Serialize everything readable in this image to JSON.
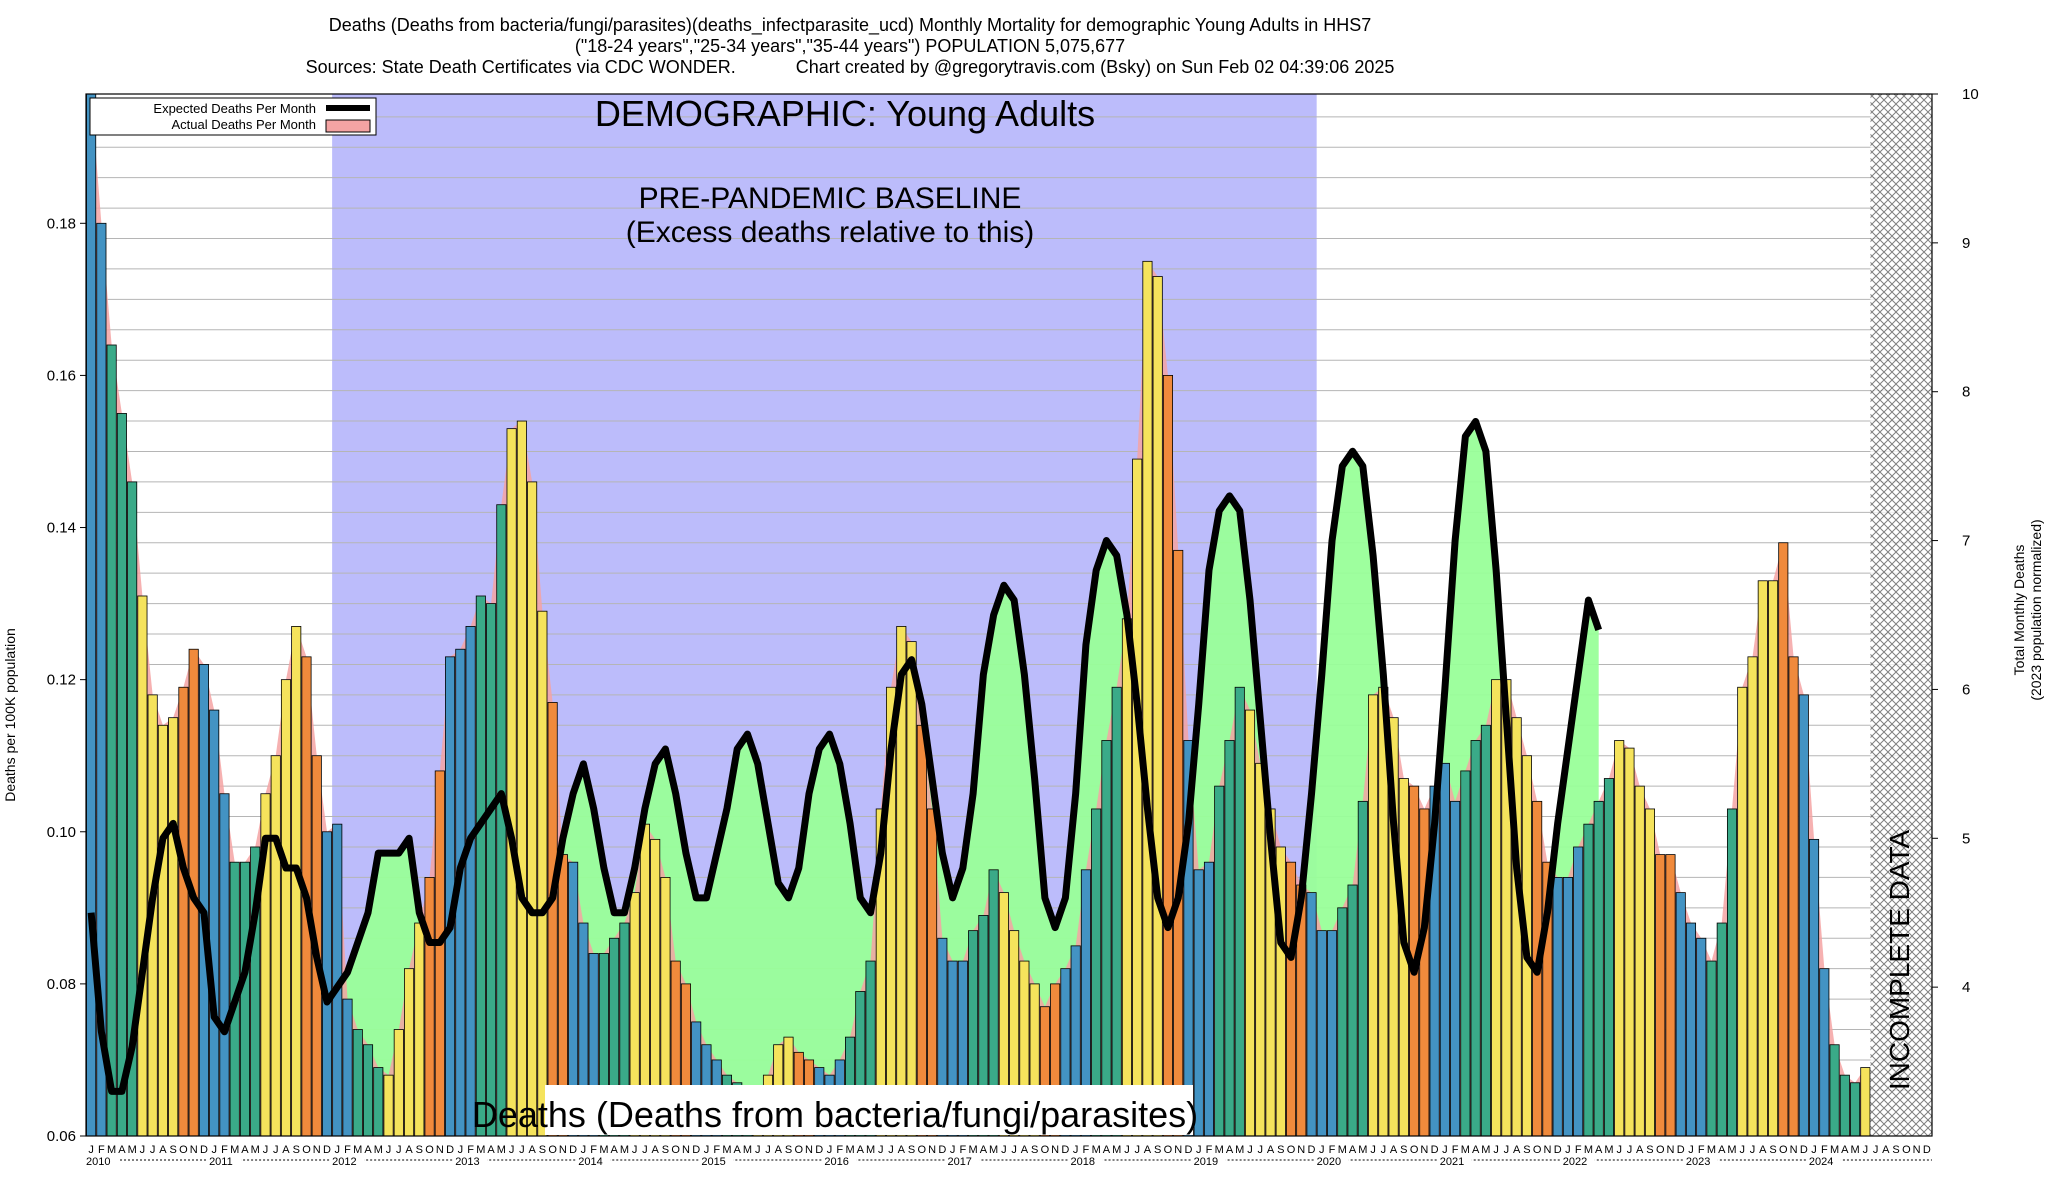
{
  "title": {
    "line1": "Deaths (Deaths from bacteria/fungi/parasites)(deaths_infectparasite_ucd) Monthly Mortality for demographic Young Adults in HHS7",
    "line2": "(\"18-24 years\",\"25-34 years\",\"35-44 years\") POPULATION 5,075,677",
    "line3": "Sources: State Death Certificates via CDC WONDER.            Chart created by @gregorytravis.com (Bsky) on Sun Feb 02 04:39:06 2025"
  },
  "labels": {
    "y_left": "Deaths per 100K population",
    "y_right_1": "Total Monthly Deaths",
    "y_right_2": "(2023 population normalized)",
    "demographic": "DEMOGRAPHIC: Young Adults",
    "baseline_1": "PRE-PANDEMIC BASELINE",
    "baseline_2": "(Excess deaths relative to this)",
    "cause_banner": "Deaths (Deaths from bacteria/fungi/parasites)",
    "incomplete": "INCOMPLETE DATA"
  },
  "legend": [
    {
      "label": "Expected Deaths Per Month",
      "color": "#000000"
    },
    {
      "label": "Actual Deaths Per Month",
      "color": "#f4a3a3"
    }
  ],
  "colors": {
    "baseline_band": "#bcbcfb",
    "excess_fill": "#99ff99",
    "baseline_green": "#77dd99",
    "winter": "#4393c3",
    "spring": "#3aaa88",
    "summer": "#f5e35c",
    "fall": "#f08a3c",
    "actual_area": "#f4a3a3"
  },
  "chart_data": {
    "type": "bar",
    "start": "2010-01",
    "month_letters": [
      "J",
      "F",
      "M",
      "A",
      "M",
      "J",
      "J",
      "A",
      "S",
      "O",
      "N",
      "D"
    ],
    "years": [
      "2010",
      "2011",
      "2012",
      "2013",
      "2014",
      "2015",
      "2016",
      "2017",
      "2018",
      "2019",
      "2020",
      "2021",
      "2022",
      "2023",
      "2024"
    ],
    "ylim": [
      0.06,
      0.197
    ],
    "yticks": [
      0.06,
      0.08,
      0.1,
      0.12,
      0.14,
      0.16,
      0.18
    ],
    "y2lim": [
      3,
      10
    ],
    "y2ticks": [
      4,
      5,
      6,
      7,
      8,
      9,
      10
    ],
    "baseline_period": [
      "2012-01",
      "2019-12"
    ],
    "incomplete_from": "2024-07",
    "series": [
      {
        "name": "Actual Deaths Per Month",
        "values": [
          0.197,
          0.18,
          0.164,
          0.155,
          0.146,
          0.131,
          0.118,
          0.114,
          0.115,
          0.119,
          0.124,
          0.122,
          0.116,
          0.105,
          0.096,
          0.096,
          0.098,
          0.105,
          0.11,
          0.12,
          0.127,
          0.123,
          0.11,
          0.1,
          0.101,
          0.078,
          0.074,
          0.072,
          0.069,
          0.068,
          0.074,
          0.082,
          0.088,
          0.094,
          0.108,
          0.123,
          0.124,
          0.127,
          0.131,
          0.13,
          0.143,
          0.153,
          0.154,
          0.146,
          0.129,
          0.117,
          0.097,
          0.096,
          0.088,
          0.084,
          0.084,
          0.086,
          0.088,
          0.092,
          0.101,
          0.099,
          0.094,
          0.083,
          0.08,
          0.075,
          0.072,
          0.07,
          0.068,
          0.067,
          0.066,
          0.065,
          0.068,
          0.072,
          0.073,
          0.071,
          0.07,
          0.069,
          0.068,
          0.07,
          0.073,
          0.079,
          0.083,
          0.103,
          0.119,
          0.127,
          0.125,
          0.114,
          0.103,
          0.086,
          0.083,
          0.083,
          0.087,
          0.089,
          0.095,
          0.092,
          0.087,
          0.083,
          0.08,
          0.077,
          0.08,
          0.082,
          0.085,
          0.095,
          0.103,
          0.112,
          0.119,
          0.128,
          0.149,
          0.175,
          0.173,
          0.16,
          0.137,
          0.112,
          0.095,
          0.096,
          0.106,
          0.112,
          0.119,
          0.116,
          0.109,
          0.103,
          0.098,
          0.096,
          0.093,
          0.092,
          0.087,
          0.087,
          0.09,
          0.093,
          0.104,
          0.118,
          0.119,
          0.115,
          0.107,
          0.106,
          0.103,
          0.106,
          0.109,
          0.104,
          0.108,
          0.112,
          0.114,
          0.12,
          0.12,
          0.115,
          0.11,
          0.104,
          0.096,
          0.094,
          0.094,
          0.098,
          0.101,
          0.104,
          0.107,
          0.112,
          0.111,
          0.106,
          0.103,
          0.097,
          0.097,
          0.092,
          0.088,
          0.086,
          0.083,
          0.088,
          0.103,
          0.119,
          0.123,
          0.133,
          0.133,
          0.138,
          0.123,
          0.118,
          0.099,
          0.082,
          0.072,
          0.068,
          0.067,
          0.069
        ]
      },
      {
        "name": "Expected Deaths Per Month",
        "values": [
          4.5,
          3.7,
          3.3,
          3.3,
          3.6,
          4.1,
          4.6,
          5.0,
          5.1,
          4.8,
          4.6,
          4.5,
          3.8,
          3.7,
          3.9,
          4.1,
          4.5,
          5.0,
          5.0,
          4.8,
          4.8,
          4.6,
          4.2,
          3.9,
          4.0,
          4.1,
          4.3,
          4.5,
          4.9,
          4.9,
          4.9,
          5.0,
          4.5,
          4.3,
          4.3,
          4.4,
          4.8,
          5.0,
          5.1,
          5.2,
          5.3,
          5.0,
          4.6,
          4.5,
          4.5,
          4.6,
          5.0,
          5.3,
          5.5,
          5.2,
          4.8,
          4.5,
          4.5,
          4.8,
          5.2,
          5.5,
          5.6,
          5.3,
          4.9,
          4.6,
          4.6,
          4.9,
          5.2,
          5.6,
          5.7,
          5.5,
          5.1,
          4.7,
          4.6,
          4.8,
          5.3,
          5.6,
          5.7,
          5.5,
          5.1,
          4.6,
          4.5,
          4.9,
          5.6,
          6.1,
          6.2,
          5.9,
          5.4,
          4.9,
          4.6,
          4.8,
          5.3,
          6.1,
          6.5,
          6.7,
          6.6,
          6.1,
          5.4,
          4.6,
          4.4,
          4.6,
          5.3,
          6.3,
          6.8,
          7.0,
          6.9,
          6.5,
          5.9,
          5.2,
          4.6,
          4.4,
          4.6,
          5.1,
          5.9,
          6.8,
          7.2,
          7.3,
          7.2,
          6.6,
          5.8,
          5.0,
          4.3,
          4.2,
          4.6,
          5.3,
          6.1,
          7.0,
          7.5,
          7.6,
          7.5,
          6.9,
          6.1,
          5.1,
          4.3,
          4.1,
          4.4,
          5.1,
          6.0,
          7.0,
          7.7,
          7.8,
          7.6,
          6.8,
          5.8,
          4.8,
          4.2,
          4.1,
          4.5,
          5.1,
          5.6,
          6.1,
          6.6,
          6.4
        ]
      }
    ]
  }
}
